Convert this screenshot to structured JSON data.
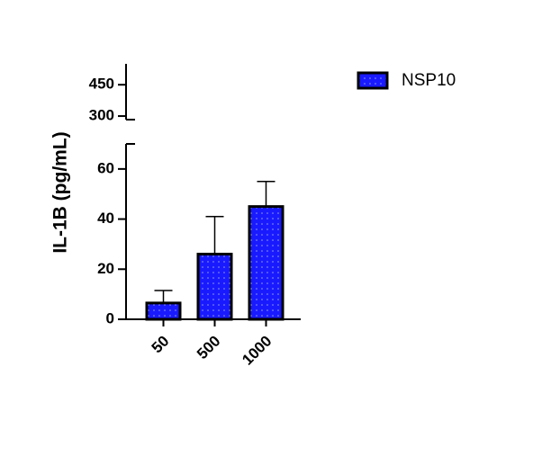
{
  "chart_data": {
    "type": "bar",
    "y_label": "IL-1B (pg/mL)",
    "categories": [
      "50",
      "500",
      "1000"
    ],
    "series": [
      {
        "name": "NSP10",
        "color": "#1a1aff",
        "values": [
          6.5,
          26,
          45
        ],
        "errors": [
          5,
          15,
          10
        ]
      }
    ],
    "ylim": [
      0,
      70
    ],
    "yticks": [
      0,
      20,
      40,
      60
    ],
    "upper_ylim": [
      283,
      550
    ],
    "upper_yticks": [
      300,
      450
    ],
    "legend": "top-right"
  }
}
